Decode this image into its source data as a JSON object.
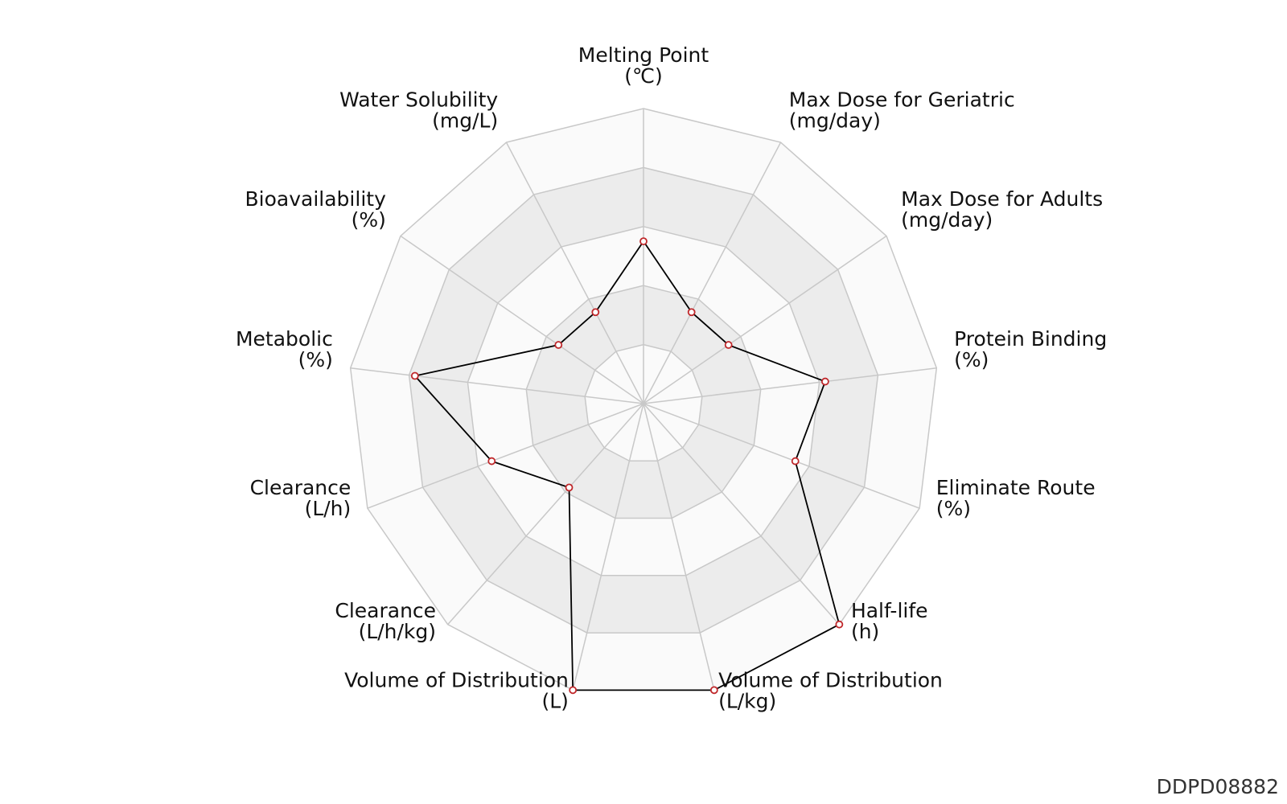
{
  "chart_data": {
    "type": "radar",
    "axes": [
      {
        "name": "Melting Point",
        "unit": "(℃)",
        "value": 0.55
      },
      {
        "name": "Max Dose for Geriatric",
        "unit": "(mg/day)",
        "value": 0.35
      },
      {
        "name": "Max Dose for Adults",
        "unit": "(mg/day)",
        "value": 0.35
      },
      {
        "name": "Protein Binding",
        "unit": "(%)",
        "value": 0.62
      },
      {
        "name": "Eliminate Route",
        "unit": "(%)",
        "value": 0.55
      },
      {
        "name": "Half-life",
        "unit": "(h)",
        "value": 1.0
      },
      {
        "name": "Volume of Distribution",
        "unit": "(L/kg)",
        "value": 1.0
      },
      {
        "name": "Volume of Distribution",
        "unit": "(L)",
        "value": 1.0
      },
      {
        "name": "Clearance",
        "unit": "(L/h/kg)",
        "value": 0.38
      },
      {
        "name": "Clearance",
        "unit": "(L/h)",
        "value": 0.55
      },
      {
        "name": "Metabolic",
        "unit": "(%)",
        "value": 0.78
      },
      {
        "name": "Bioavailability",
        "unit": "(%)",
        "value": 0.35
      },
      {
        "name": "Water Solubility",
        "unit": "(mg/L)",
        "value": 0.35
      }
    ],
    "range": [
      0,
      1
    ],
    "rings": 5,
    "colors": {
      "line": "#000000",
      "marker_edge": "#c0282b",
      "marker_fill": "#ffffff",
      "band_shaded": "#ececec",
      "band_light": "#fafafa",
      "grid": "#c8c8c8"
    }
  },
  "footer": {
    "chart_id": "DDPD08882"
  }
}
